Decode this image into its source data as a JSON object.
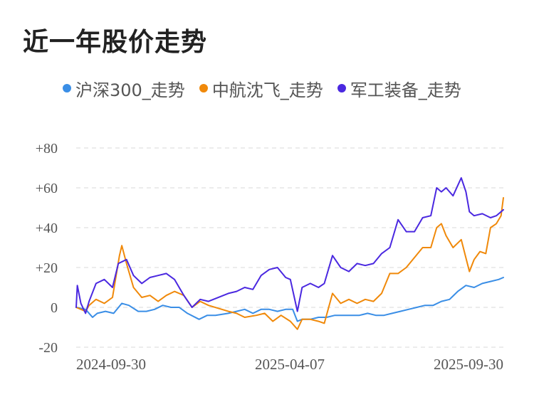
{
  "title": "近一年股价走势",
  "chart_data": {
    "type": "line",
    "title": "近一年股价走势",
    "xlabel": "",
    "ylabel": "",
    "ylim": [
      -20,
      80
    ],
    "y_ticks": [
      {
        "value": 80,
        "label": "+80"
      },
      {
        "value": 60,
        "label": "+60"
      },
      {
        "value": 40,
        "label": "+40"
      },
      {
        "value": 20,
        "label": "+20"
      },
      {
        "value": 0,
        "label": "0"
      },
      {
        "value": -20,
        "label": "-20"
      }
    ],
    "x_ticks": [
      "2024-09-30",
      "2025-04-07",
      "2025-09-30"
    ],
    "x_start": "2024-09-30",
    "x_end": "2025-09-30",
    "grid": "horizontal dashed",
    "legend": "top",
    "series": [
      {
        "name": "沪深300_走势",
        "color": "#3a8ee6",
        "points": [
          [
            "2024-09-30",
            0
          ],
          [
            "2024-10-08",
            -1
          ],
          [
            "2024-10-14",
            -5
          ],
          [
            "2024-10-18",
            -3
          ],
          [
            "2024-10-25",
            -2
          ],
          [
            "2024-11-01",
            -3
          ],
          [
            "2024-11-08",
            2
          ],
          [
            "2024-11-14",
            1
          ],
          [
            "2024-11-22",
            -2
          ],
          [
            "2024-11-29",
            -2
          ],
          [
            "2024-12-06",
            -1
          ],
          [
            "2024-12-13",
            1
          ],
          [
            "2024-12-20",
            0
          ],
          [
            "2024-12-27",
            0
          ],
          [
            "2025-01-03",
            -3
          ],
          [
            "2025-01-13",
            -6
          ],
          [
            "2025-01-20",
            -4
          ],
          [
            "2025-01-27",
            -4
          ],
          [
            "2025-02-07",
            -3
          ],
          [
            "2025-02-14",
            -2
          ],
          [
            "2025-02-21",
            -1
          ],
          [
            "2025-02-28",
            -3
          ],
          [
            "2025-03-07",
            -1
          ],
          [
            "2025-03-14",
            -1
          ],
          [
            "2025-03-21",
            -2
          ],
          [
            "2025-03-28",
            -1
          ],
          [
            "2025-04-03",
            -1
          ],
          [
            "2025-04-07",
            -7
          ],
          [
            "2025-04-11",
            -6
          ],
          [
            "2025-04-18",
            -6
          ],
          [
            "2025-04-25",
            -5
          ],
          [
            "2025-05-02",
            -5
          ],
          [
            "2025-05-09",
            -4
          ],
          [
            "2025-05-16",
            -4
          ],
          [
            "2025-05-23",
            -4
          ],
          [
            "2025-05-30",
            -4
          ],
          [
            "2025-06-06",
            -3
          ],
          [
            "2025-06-13",
            -4
          ],
          [
            "2025-06-20",
            -4
          ],
          [
            "2025-06-27",
            -3
          ],
          [
            "2025-07-04",
            -2
          ],
          [
            "2025-07-11",
            -1
          ],
          [
            "2025-07-18",
            0
          ],
          [
            "2025-07-25",
            1
          ],
          [
            "2025-08-01",
            1
          ],
          [
            "2025-08-08",
            3
          ],
          [
            "2025-08-15",
            4
          ],
          [
            "2025-08-22",
            8
          ],
          [
            "2025-08-29",
            11
          ],
          [
            "2025-09-05",
            10
          ],
          [
            "2025-09-12",
            12
          ],
          [
            "2025-09-19",
            13
          ],
          [
            "2025-09-26",
            14
          ],
          [
            "2025-09-30",
            15
          ]
        ]
      },
      {
        "name": "中航沈飞_走势",
        "color": "#f0890a",
        "points": [
          [
            "2024-09-30",
            0
          ],
          [
            "2024-10-08",
            -2
          ],
          [
            "2024-10-11",
            1
          ],
          [
            "2024-10-17",
            4
          ],
          [
            "2024-10-24",
            2
          ],
          [
            "2024-10-31",
            5
          ],
          [
            "2024-11-06",
            26
          ],
          [
            "2024-11-08",
            31
          ],
          [
            "2024-11-12",
            22
          ],
          [
            "2024-11-18",
            10
          ],
          [
            "2024-11-25",
            5
          ],
          [
            "2024-12-02",
            6
          ],
          [
            "2024-12-09",
            3
          ],
          [
            "2024-12-16",
            6
          ],
          [
            "2024-12-23",
            8
          ],
          [
            "2024-12-31",
            6
          ],
          [
            "2025-01-07",
            0
          ],
          [
            "2025-01-14",
            3
          ],
          [
            "2025-01-21",
            1
          ],
          [
            "2025-02-07",
            -2
          ],
          [
            "2025-02-14",
            -3
          ],
          [
            "2025-02-21",
            -5
          ],
          [
            "2025-03-03",
            -4
          ],
          [
            "2025-03-10",
            -3
          ],
          [
            "2025-03-17",
            -7
          ],
          [
            "2025-03-24",
            -4
          ],
          [
            "2025-04-01",
            -7
          ],
          [
            "2025-04-07",
            -11
          ],
          [
            "2025-04-11",
            -6
          ],
          [
            "2025-04-18",
            -6
          ],
          [
            "2025-04-25",
            -7
          ],
          [
            "2025-04-30",
            -8
          ],
          [
            "2025-05-07",
            7
          ],
          [
            "2025-05-14",
            2
          ],
          [
            "2025-05-21",
            4
          ],
          [
            "2025-05-28",
            2
          ],
          [
            "2025-06-04",
            4
          ],
          [
            "2025-06-11",
            3
          ],
          [
            "2025-06-18",
            7
          ],
          [
            "2025-06-25",
            17
          ],
          [
            "2025-07-02",
            17
          ],
          [
            "2025-07-09",
            20
          ],
          [
            "2025-07-16",
            25
          ],
          [
            "2025-07-23",
            30
          ],
          [
            "2025-07-30",
            30
          ],
          [
            "2025-08-04",
            40
          ],
          [
            "2025-08-08",
            42
          ],
          [
            "2025-08-12",
            36
          ],
          [
            "2025-08-18",
            30
          ],
          [
            "2025-08-25",
            34
          ],
          [
            "2025-09-01",
            18
          ],
          [
            "2025-09-05",
            24
          ],
          [
            "2025-09-10",
            28
          ],
          [
            "2025-09-15",
            27
          ],
          [
            "2025-09-19",
            40
          ],
          [
            "2025-09-24",
            42
          ],
          [
            "2025-09-28",
            46
          ],
          [
            "2025-09-30",
            55
          ]
        ]
      },
      {
        "name": "军工装备_走势",
        "color": "#4a28e0",
        "points": [
          [
            "2024-09-30",
            0
          ],
          [
            "2024-10-01",
            11
          ],
          [
            "2024-10-04",
            2
          ],
          [
            "2024-10-08",
            -3
          ],
          [
            "2024-10-11",
            3
          ],
          [
            "2024-10-17",
            12
          ],
          [
            "2024-10-24",
            14
          ],
          [
            "2024-10-31",
            10
          ],
          [
            "2024-11-05",
            22
          ],
          [
            "2024-11-12",
            24
          ],
          [
            "2024-11-18",
            16
          ],
          [
            "2024-11-25",
            12
          ],
          [
            "2024-12-02",
            15
          ],
          [
            "2024-12-09",
            16
          ],
          [
            "2024-12-16",
            17
          ],
          [
            "2024-12-23",
            14
          ],
          [
            "2024-12-31",
            6
          ],
          [
            "2025-01-07",
            0
          ],
          [
            "2025-01-14",
            4
          ],
          [
            "2025-01-21",
            3
          ],
          [
            "2025-02-07",
            7
          ],
          [
            "2025-02-14",
            8
          ],
          [
            "2025-02-21",
            10
          ],
          [
            "2025-02-28",
            9
          ],
          [
            "2025-03-07",
            16
          ],
          [
            "2025-03-14",
            19
          ],
          [
            "2025-03-21",
            20
          ],
          [
            "2025-03-28",
            15
          ],
          [
            "2025-04-01",
            14
          ],
          [
            "2025-04-07",
            -2
          ],
          [
            "2025-04-11",
            10
          ],
          [
            "2025-04-18",
            12
          ],
          [
            "2025-04-25",
            10
          ],
          [
            "2025-04-30",
            12
          ],
          [
            "2025-05-07",
            26
          ],
          [
            "2025-05-14",
            20
          ],
          [
            "2025-05-21",
            18
          ],
          [
            "2025-05-28",
            22
          ],
          [
            "2025-06-04",
            21
          ],
          [
            "2025-06-11",
            22
          ],
          [
            "2025-06-18",
            27
          ],
          [
            "2025-06-25",
            30
          ],
          [
            "2025-07-02",
            44
          ],
          [
            "2025-07-09",
            38
          ],
          [
            "2025-07-16",
            38
          ],
          [
            "2025-07-23",
            45
          ],
          [
            "2025-07-30",
            46
          ],
          [
            "2025-08-04",
            60
          ],
          [
            "2025-08-08",
            58
          ],
          [
            "2025-08-12",
            60
          ],
          [
            "2025-08-18",
            56
          ],
          [
            "2025-08-25",
            65
          ],
          [
            "2025-08-29",
            58
          ],
          [
            "2025-09-01",
            48
          ],
          [
            "2025-09-05",
            46
          ],
          [
            "2025-09-12",
            47
          ],
          [
            "2025-09-19",
            45
          ],
          [
            "2025-09-24",
            46
          ],
          [
            "2025-09-30",
            49
          ]
        ]
      }
    ]
  }
}
